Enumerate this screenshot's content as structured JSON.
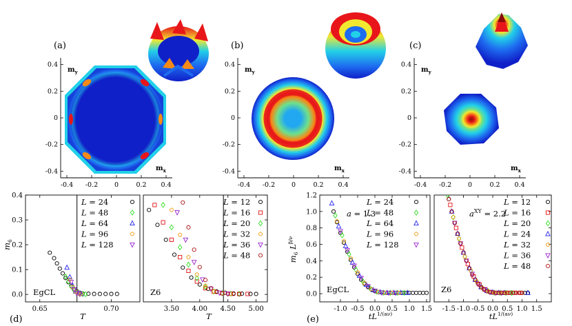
{
  "panel_labels": [
    "(a)",
    "(b)",
    "(c)",
    "(d)",
    "(e)"
  ],
  "colors": {
    "deep": "#1020c8",
    "mid": "#1e6cf0",
    "cyan": "#22d0e8",
    "green": "#6fe08a",
    "yellow": "#f2e830",
    "orange": "#f58a18",
    "red": "#e8161a",
    "dark_red": "#8a0a0a"
  },
  "chart_data": [
    {
      "type": "heatmap",
      "panel": "(a)",
      "description_of_pattern": "octagonal ring with six hot spots",
      "xlabel": "m",
      "xlabel_sub": "x",
      "ylabel": "m",
      "ylabel_sub": "y",
      "xticks": [
        "-0.4",
        "-0.2",
        "0",
        "0.2",
        "0.4"
      ],
      "yticks": [
        "0.4",
        "0.2",
        "0",
        "-0.2",
        "-0.4"
      ],
      "xlim": [
        -0.45,
        0.45
      ],
      "ylim": [
        -0.45,
        0.45
      ]
    },
    {
      "type": "heatmap",
      "panel": "(b)",
      "xlabel": "m",
      "xlabel_sub": "x",
      "ylabel": "m",
      "ylabel_sub": "y",
      "xticks": [
        "-0.4",
        "-0.2",
        "0",
        "0.2",
        "0.4"
      ],
      "yticks": [
        "0.4",
        "0.2",
        "0",
        "-0.2",
        "-0.4"
      ],
      "xlim": [
        -0.45,
        0.45
      ],
      "ylim": [
        -0.45,
        0.45
      ]
    },
    {
      "type": "heatmap",
      "panel": "(c)",
      "xlabel": "m",
      "xlabel_sub": "x",
      "ylabel": "m",
      "ylabel_sub": "y",
      "xticks": [
        "-0.4",
        "-0.2",
        "0",
        "0.2",
        "0.4"
      ],
      "yticks": [
        "0.4",
        "0.2",
        "0",
        "-0.2",
        "-0.4"
      ],
      "xlim": [
        -0.45,
        0.45
      ],
      "ylim": [
        -0.45,
        0.45
      ]
    },
    {
      "type": "scatter",
      "panel": "(d) left",
      "ylabel": "m",
      "ylabel_sub": "6",
      "xlabel": "T",
      "xlim": [
        0.64,
        0.72
      ],
      "ylim": [
        -0.03,
        0.4
      ],
      "xticks": [
        "0.65",
        "0.70"
      ],
      "xtick_values": [
        0.65,
        0.7
      ],
      "yticks": [
        "0.0",
        "0.1",
        "0.2",
        "0.3",
        "0.4"
      ],
      "ytick_values": [
        0.0,
        0.1,
        0.2,
        0.3,
        0.4
      ],
      "inset_text": "EgCL",
      "critical_T": 0.676,
      "series": [
        {
          "name": "L = 24",
          "marker": "circle",
          "color": "#000000",
          "x": [
            0.657,
            0.66,
            0.662,
            0.664,
            0.666,
            0.668,
            0.67,
            0.672,
            0.674,
            0.676,
            0.678,
            0.68,
            0.684,
            0.688,
            0.692,
            0.696,
            0.7,
            0.704
          ],
          "y": [
            0.168,
            0.146,
            0.125,
            0.104,
            0.085,
            0.066,
            0.049,
            0.034,
            0.021,
            0.012,
            0.007,
            0.004,
            0.003,
            0.002,
            0.002,
            0.002,
            0.002,
            0.002
          ]
        },
        {
          "name": "L = 48",
          "marker": "diamond",
          "color": "#33dd22",
          "x": [
            0.668,
            0.67,
            0.672,
            0.674,
            0.676,
            0.678,
            0.68,
            0.682
          ],
          "y": [
            0.072,
            0.052,
            0.032,
            0.016,
            0.007,
            0.003,
            0.002,
            0.001
          ]
        },
        {
          "name": "L = 64",
          "marker": "triangle-up",
          "color": "#2222ee",
          "x": [
            0.669,
            0.671,
            0.673,
            0.675,
            0.677,
            0.679
          ],
          "y": [
            0.108,
            0.07,
            0.035,
            0.012,
            0.004,
            0.002
          ]
        },
        {
          "name": "L = 96",
          "marker": "pentagon",
          "color": "#f0a020",
          "x": [
            0.671,
            0.673,
            0.675,
            0.677,
            0.679
          ],
          "y": [
            0.06,
            0.03,
            0.01,
            0.003,
            0.002
          ]
        },
        {
          "name": "L = 128",
          "marker": "triangle-down",
          "color": "#9922cc",
          "x": [
            0.672,
            0.674,
            0.676,
            0.678
          ],
          "y": [
            0.05,
            0.02,
            0.006,
            0.002
          ]
        }
      ]
    },
    {
      "type": "scatter",
      "panel": "(d) right",
      "xlabel": "T",
      "xlim": [
        3.0,
        5.2
      ],
      "ylim": [
        -0.03,
        0.4
      ],
      "xticks": [
        "3.50",
        "4.00",
        "4.50",
        "5.00"
      ],
      "xtick_values": [
        3.5,
        4.0,
        4.5,
        5.0
      ],
      "inset_text": "Z6",
      "critical_T": 4.42,
      "series": [
        {
          "name": "L = 12",
          "marker": "circle",
          "color": "#000000",
          "x": [
            3.1,
            3.25,
            3.4,
            3.55,
            3.7,
            3.85,
            4.0,
            4.15,
            4.3,
            4.45,
            4.6,
            4.75,
            4.9,
            5.0
          ],
          "y": [
            0.34,
            0.28,
            0.22,
            0.16,
            0.108,
            0.068,
            0.04,
            0.022,
            0.012,
            0.007,
            0.004,
            0.003,
            0.002,
            0.002
          ]
        },
        {
          "name": "L = 16",
          "marker": "square",
          "color": "#e01010",
          "x": [
            3.2,
            3.35,
            3.5,
            3.65,
            3.8,
            3.95,
            4.1,
            4.25,
            4.4,
            4.55,
            4.7,
            4.85
          ],
          "y": [
            0.36,
            0.29,
            0.22,
            0.15,
            0.095,
            0.052,
            0.025,
            0.011,
            0.005,
            0.003,
            0.002,
            0.002
          ]
        },
        {
          "name": "L = 20",
          "marker": "diamond",
          "color": "#33dd22",
          "x": [
            3.35,
            3.5,
            3.65,
            3.8,
            3.95,
            4.1,
            4.25,
            4.4,
            4.55,
            4.7
          ],
          "y": [
            0.36,
            0.27,
            0.19,
            0.12,
            0.065,
            0.03,
            0.012,
            0.005,
            0.003,
            0.002
          ]
        },
        {
          "name": "L = 32",
          "marker": "pentagon",
          "color": "#f0a020",
          "x": [
            3.5,
            3.65,
            3.8,
            3.95,
            4.1,
            4.25,
            4.4,
            4.55
          ],
          "y": [
            0.34,
            0.24,
            0.15,
            0.08,
            0.035,
            0.012,
            0.004,
            0.002
          ]
        },
        {
          "name": "L = 36",
          "marker": "triangle-down",
          "color": "#9922cc",
          "x": [
            3.6,
            3.75,
            3.9,
            4.05,
            4.2,
            4.35,
            4.5
          ],
          "y": [
            0.33,
            0.22,
            0.13,
            0.06,
            0.022,
            0.007,
            0.003
          ]
        },
        {
          "name": "L = 48",
          "marker": "circle",
          "color": "#aa1010",
          "x": [
            3.7,
            3.8,
            3.9,
            4.0,
            4.1,
            4.2,
            4.3,
            4.4,
            4.5,
            4.6,
            4.7
          ],
          "y": [
            0.37,
            0.27,
            0.18,
            0.11,
            0.058,
            0.025,
            0.01,
            0.004,
            0.002,
            0.002,
            0.001
          ]
        }
      ]
    },
    {
      "type": "scatter",
      "panel": "(e) left",
      "ylabel": "m",
      "ylabel_sub": "6",
      "ylabel_sup": "L",
      "ylabel_exp": "β/ν",
      "xlabel": "tL",
      "xlabel_exp": "1/(aν)",
      "xlim": [
        -1.6,
        1.6
      ],
      "ylim": [
        -0.1,
        1.2
      ],
      "xticks": [
        "-1.0",
        "-0.5",
        "0.0",
        "0.5",
        "1.0",
        "1.5"
      ],
      "xtick_values": [
        -1.0,
        -0.5,
        0.0,
        0.5,
        1.0,
        1.5
      ],
      "yticks": [
        "0.0",
        "0.2",
        "0.4",
        "0.6",
        "0.8",
        "1.0",
        "1.2"
      ],
      "ytick_values": [
        0.0,
        0.2,
        0.4,
        0.6,
        0.8,
        1.0,
        1.2
      ],
      "annotation": "a = 1.3",
      "inset_text": "EgCL",
      "series": [
        {
          "name": "L = 24",
          "marker": "circle",
          "color": "#000000",
          "x": [
            -1.2,
            -1.1,
            -1.0,
            -0.9,
            -0.8,
            -0.7,
            -0.6,
            -0.5,
            -0.4,
            -0.3,
            -0.2,
            -0.1,
            0.0,
            0.1,
            0.2,
            0.3,
            0.4,
            0.5,
            0.6,
            0.7,
            0.8,
            0.9,
            1.0,
            1.1,
            1.2,
            1.3,
            1.4,
            1.5
          ],
          "y": [
            1.0,
            0.87,
            0.74,
            0.62,
            0.51,
            0.41,
            0.32,
            0.24,
            0.17,
            0.12,
            0.08,
            0.05,
            0.03,
            0.02,
            0.015,
            0.01,
            0.01,
            0.01,
            0.01,
            0.01,
            0.01,
            0.01,
            0.01,
            0.01,
            0.01,
            0.01,
            0.01,
            0.01
          ]
        },
        {
          "name": "L = 48",
          "marker": "diamond",
          "color": "#33dd22",
          "x": [
            -1.15,
            -0.95,
            -0.75,
            -0.55,
            -0.35,
            -0.15,
            0.05,
            0.25,
            0.45,
            0.65,
            0.85
          ],
          "y": [
            0.95,
            0.71,
            0.48,
            0.29,
            0.15,
            0.07,
            0.025,
            0.012,
            0.01,
            0.01,
            0.01
          ]
        },
        {
          "name": "L = 64",
          "marker": "triangle-up",
          "color": "#2222ee",
          "x": [
            -1.25,
            -1.05,
            -0.85,
            -0.65,
            -0.45,
            -0.25,
            -0.05,
            0.15,
            0.35,
            0.55,
            0.75,
            0.95
          ],
          "y": [
            1.1,
            0.82,
            0.58,
            0.38,
            0.22,
            0.11,
            0.045,
            0.018,
            0.01,
            0.01,
            0.01,
            0.01
          ]
        },
        {
          "name": "L = 96",
          "marker": "pentagon",
          "color": "#f0a020",
          "x": [
            -1.1,
            -0.9,
            -0.7,
            -0.5,
            -0.3,
            -0.1,
            0.1,
            0.3,
            0.5,
            0.7
          ],
          "y": [
            0.88,
            0.64,
            0.43,
            0.26,
            0.13,
            0.055,
            0.02,
            0.01,
            0.01,
            0.01
          ]
        },
        {
          "name": "L = 128",
          "marker": "triangle-down",
          "color": "#9922cc",
          "x": [
            -1.0,
            -0.8,
            -0.6,
            -0.4,
            -0.2,
            0.0,
            0.2,
            0.4,
            0.6
          ],
          "y": [
            0.76,
            0.53,
            0.34,
            0.19,
            0.09,
            0.035,
            0.013,
            0.01,
            0.01
          ]
        }
      ]
    },
    {
      "type": "scatter",
      "panel": "(e) right",
      "xlabel": "tL",
      "xlabel_exp": "1/(aν)",
      "xlim": [
        -2.0,
        2.0
      ],
      "ylim": [
        -0.1,
        1.2
      ],
      "xticks": [
        "-1.5",
        "-1.0",
        "-0.5",
        "0.0",
        "0.5",
        "1.0",
        "1.5"
      ],
      "xtick_values": [
        -1.5,
        -1.0,
        -0.5,
        0.0,
        0.5,
        1.0,
        1.5
      ],
      "annotation": "a^XY = 2.2",
      "annotation_base": "a",
      "annotation_sup": "XY",
      "annotation_tail": " = 2.2",
      "inset_text": "Z6",
      "series": [
        {
          "name": "L = 12",
          "marker": "circle",
          "color": "#000000",
          "x": [
            -1.5,
            -1.4,
            -1.3,
            -1.2,
            -1.1,
            -1.0,
            -0.9,
            -0.8,
            -0.7,
            -0.6,
            -0.5,
            -0.4,
            -0.3,
            -0.2,
            -0.1,
            0.0,
            0.1,
            0.2,
            0.3,
            0.4,
            0.5,
            0.6,
            0.7,
            0.8,
            0.9,
            1.0,
            1.1,
            1.2
          ],
          "y": [
            1.15,
            1.0,
            0.86,
            0.73,
            0.61,
            0.5,
            0.4,
            0.31,
            0.23,
            0.17,
            0.12,
            0.08,
            0.05,
            0.03,
            0.02,
            0.015,
            0.01,
            0.01,
            0.01,
            0.01,
            0.01,
            0.01,
            0.01,
            0.01,
            0.01,
            0.01,
            0.01,
            0.01
          ]
        },
        {
          "name": "L = 16",
          "marker": "square",
          "color": "#e01010",
          "x": [
            -1.45,
            -1.25,
            -1.05,
            -0.85,
            -0.65,
            -0.45,
            -0.25,
            -0.05,
            0.15,
            0.35,
            0.55,
            0.75,
            0.95
          ],
          "y": [
            1.08,
            0.8,
            0.56,
            0.36,
            0.21,
            0.11,
            0.05,
            0.02,
            0.01,
            0.01,
            0.01,
            0.01,
            0.01
          ]
        },
        {
          "name": "L = 20",
          "marker": "diamond",
          "color": "#33dd22",
          "x": [
            -1.55,
            -1.35,
            -1.15,
            -0.95,
            -0.75,
            -0.55,
            -0.35,
            -0.15,
            0.05,
            0.25,
            0.45,
            0.65
          ],
          "y": [
            1.2,
            0.93,
            0.67,
            0.45,
            0.28,
            0.15,
            0.07,
            0.03,
            0.012,
            0.01,
            0.01,
            0.01
          ]
        },
        {
          "name": "L = 24",
          "marker": "triangle-up",
          "color": "#2222ee",
          "x": [
            -1.4,
            -1.2,
            -1.0,
            -0.8,
            -0.6,
            -0.4,
            -0.2,
            0.0,
            0.2,
            0.4,
            1.2
          ],
          "y": [
            1.0,
            0.73,
            0.5,
            0.31,
            0.17,
            0.08,
            0.035,
            0.015,
            0.01,
            0.01,
            0.01
          ]
        },
        {
          "name": "L = 32",
          "marker": "pentagon",
          "color": "#f0a020",
          "x": [
            -1.35,
            -1.15,
            -0.95,
            -0.75,
            -0.55,
            -0.35,
            -0.15,
            0.05,
            0.25,
            0.45
          ],
          "y": [
            0.93,
            0.67,
            0.45,
            0.28,
            0.15,
            0.07,
            0.03,
            0.012,
            0.01,
            0.01
          ]
        },
        {
          "name": "L = 36",
          "marker": "triangle-down",
          "color": "#9922cc",
          "x": [
            -1.3,
            -1.1,
            -0.9,
            -0.7,
            -0.5,
            -0.3,
            -0.1,
            0.1,
            0.3
          ],
          "y": [
            0.86,
            0.61,
            0.4,
            0.24,
            0.12,
            0.055,
            0.02,
            0.01,
            0.01
          ]
        },
        {
          "name": "L = 48",
          "marker": "circle",
          "color": "#aa1010",
          "x": [
            -1.5,
            -1.4,
            -1.3,
            -1.2,
            -1.1,
            -1.0,
            -0.9,
            -0.8,
            -0.7,
            -0.6,
            -0.5,
            -0.4,
            -0.3,
            -0.2,
            -0.1,
            0.0,
            0.1,
            0.2,
            0.3,
            0.4,
            0.5,
            0.6,
            0.7,
            0.8,
            0.9,
            1.0
          ],
          "y": [
            1.15,
            1.0,
            0.86,
            0.73,
            0.61,
            0.5,
            0.4,
            0.31,
            0.23,
            0.17,
            0.12,
            0.08,
            0.05,
            0.03,
            0.02,
            0.015,
            0.01,
            0.01,
            0.01,
            0.01,
            0.01,
            0.01,
            0.01,
            0.01,
            0.01,
            0.01
          ]
        }
      ]
    }
  ]
}
